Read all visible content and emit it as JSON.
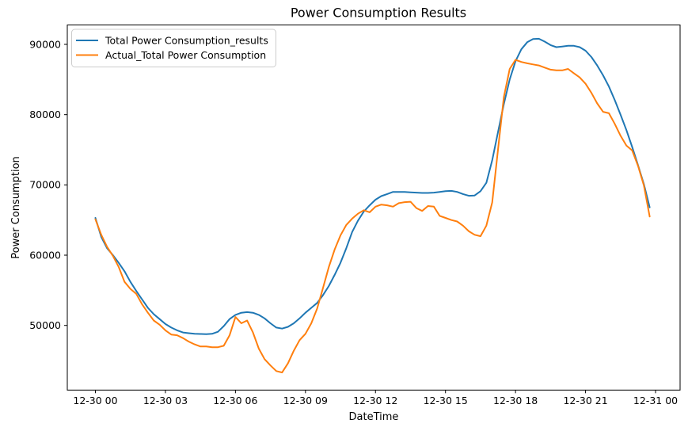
{
  "figure": {
    "title": "Power Consumption Results",
    "background": "#ffffff",
    "spine_color": "#000000",
    "text_color": "#000000",
    "legend_border_color": "#cccccc",
    "legend_background": "#ffffff"
  },
  "chart_data": {
    "type": "line",
    "title": "Power Consumption Results",
    "xlabel": "DateTime",
    "ylabel": "Power Consumption",
    "x_tick_labels": [
      "12-30 00",
      "12-30 03",
      "12-30 06",
      "12-30 09",
      "12-30 12",
      "12-30 15",
      "12-30 18",
      "12-30 21",
      "12-31 00"
    ],
    "y_ticks": [
      50000,
      60000,
      70000,
      80000,
      90000
    ],
    "y_tick_labels": [
      "50000",
      "60000",
      "70000",
      "80000",
      "90000"
    ],
    "ylim": [
      40800,
      92800
    ],
    "x_range_hours": [
      0,
      23.75
    ],
    "x_start_hour": 0,
    "x_step_hours": 0.25,
    "grid": false,
    "legend_position": "upper left",
    "series": [
      {
        "name": "Total Power Consumption_results",
        "color": "#1f77b4",
        "values": [
          65300,
          62600,
          61000,
          60000,
          58900,
          57700,
          56200,
          54900,
          53700,
          52500,
          51600,
          50900,
          50200,
          49700,
          49300,
          49000,
          48900,
          48800,
          48780,
          48760,
          48800,
          49100,
          49900,
          50900,
          51500,
          51800,
          51900,
          51800,
          51500,
          51000,
          50300,
          49700,
          49550,
          49800,
          50300,
          51000,
          51800,
          52500,
          53200,
          54300,
          55600,
          57200,
          58900,
          61000,
          63300,
          64900,
          66200,
          67100,
          67900,
          68400,
          68700,
          69000,
          69000,
          69000,
          68950,
          68900,
          68850,
          68850,
          68900,
          69000,
          69100,
          69150,
          69000,
          68700,
          68450,
          68500,
          69100,
          70300,
          73500,
          77500,
          81500,
          85000,
          87600,
          89300,
          90300,
          90750,
          90800,
          90400,
          89900,
          89600,
          89700,
          89800,
          89800,
          89600,
          89100,
          88200,
          87000,
          85600,
          84000,
          82100,
          80000,
          77800,
          75400,
          72800,
          70100,
          66800
        ]
      },
      {
        "name": "Actual_Total Power Consumption",
        "color": "#ff7f0e",
        "values": [
          65100,
          62900,
          61200,
          59900,
          58300,
          56200,
          55200,
          54500,
          53000,
          51800,
          50700,
          50100,
          49300,
          48700,
          48600,
          48200,
          47700,
          47300,
          47000,
          47000,
          46900,
          46900,
          47100,
          48600,
          51200,
          50300,
          50700,
          49000,
          46700,
          45200,
          44300,
          43500,
          43300,
          44600,
          46400,
          47900,
          48800,
          50300,
          52400,
          55300,
          58300,
          60800,
          62800,
          64300,
          65200,
          65900,
          66400,
          66100,
          66900,
          67200,
          67100,
          66900,
          67400,
          67550,
          67600,
          66700,
          66300,
          67000,
          66900,
          65600,
          65300,
          65000,
          64800,
          64200,
          63400,
          62900,
          62700,
          64200,
          67500,
          75000,
          82500,
          86500,
          87800,
          87500,
          87300,
          87150,
          87000,
          86700,
          86400,
          86300,
          86300,
          86500,
          85900,
          85300,
          84400,
          83100,
          81600,
          80400,
          80200,
          78700,
          77000,
          75600,
          74900,
          72700,
          69900,
          65500
        ]
      }
    ]
  }
}
